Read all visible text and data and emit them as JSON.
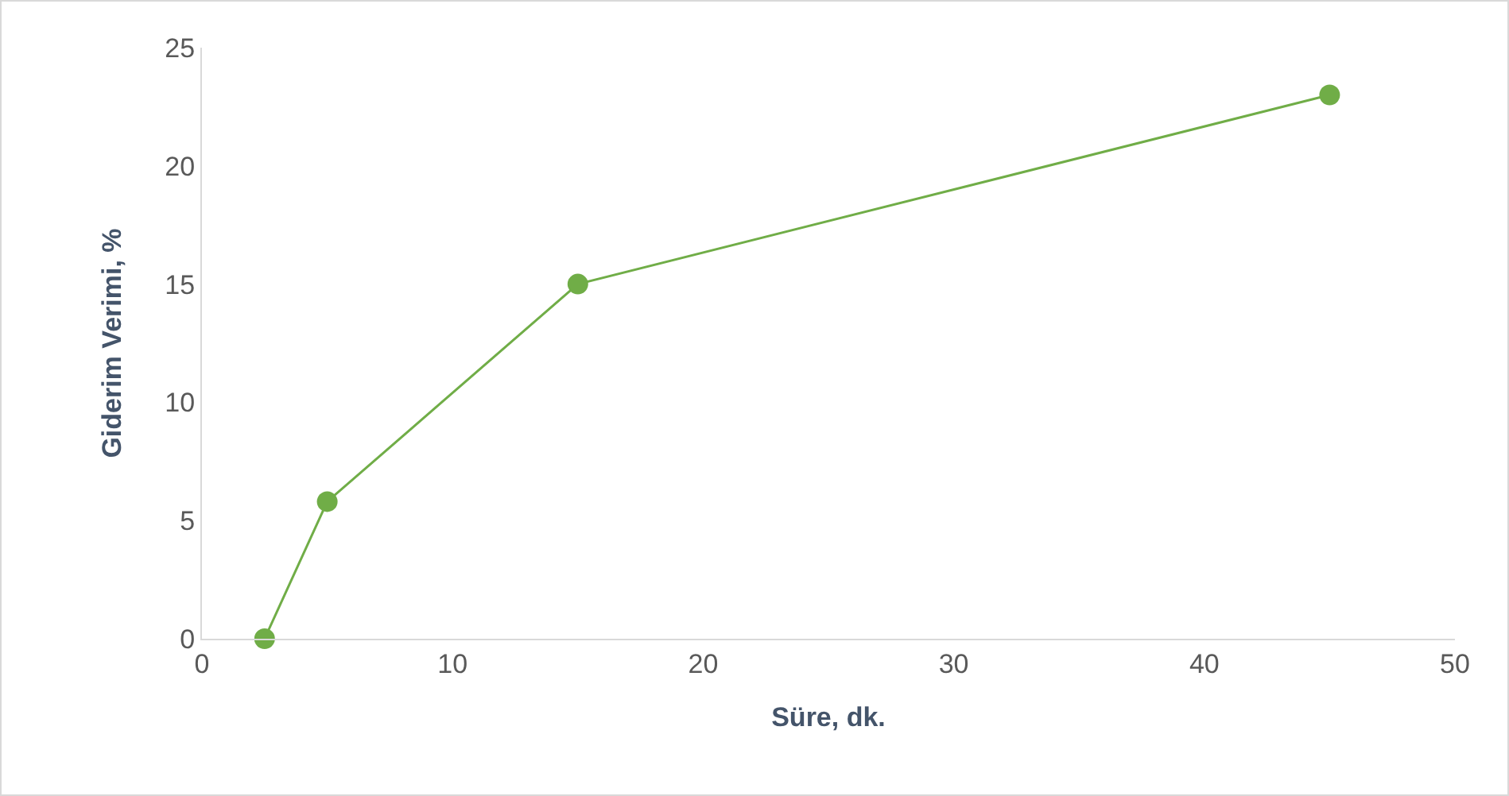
{
  "chart_data": {
    "type": "line",
    "xlabel": "Süre, dk.",
    "ylabel": "Giderim Verimi, %",
    "x": [
      2.5,
      5,
      15,
      45
    ],
    "series": [
      {
        "color": "#70ad47",
        "values": [
          0,
          5.8,
          15,
          23
        ]
      }
    ],
    "xlim": [
      0,
      50
    ],
    "xticks": [
      0,
      10,
      20,
      30,
      40,
      50
    ],
    "ylim": [
      0,
      25
    ],
    "yticks": [
      0,
      5,
      10,
      15,
      20,
      25
    ],
    "grid": false,
    "marker": "circle",
    "line_style": "solid"
  }
}
